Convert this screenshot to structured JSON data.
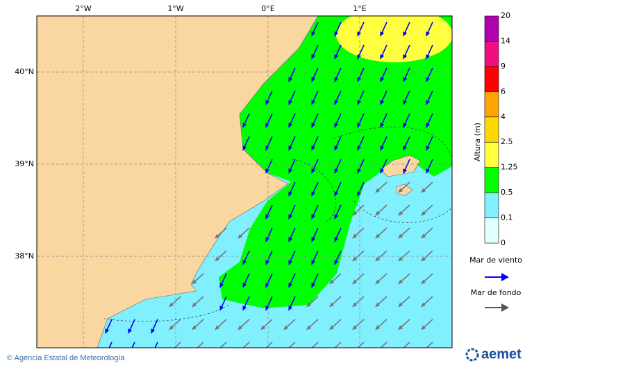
{
  "map": {
    "lon_labels": [
      "2°W",
      "1°W",
      "0°E",
      "1°E"
    ],
    "lat_labels": [
      "40°N",
      "39°N",
      "38°N"
    ]
  },
  "colorbar": {
    "title": "Altura (m)",
    "levels": [
      0,
      0.1,
      0.5,
      1.25,
      2.5,
      4,
      6,
      9,
      14,
      20
    ],
    "colors": [
      "#e0ffff",
      "#80f0ff",
      "#00ff00",
      "#ffff40",
      "#ffd700",
      "#ffa500",
      "#ff0000",
      "#ee1080",
      "#b000b0"
    ]
  },
  "legend": {
    "wind_sea": "Mar de viento",
    "swell": "Mar de fondo"
  },
  "footer": {
    "credit": "© Agencia Estatal de Meteorología",
    "logo": "aemet"
  }
}
